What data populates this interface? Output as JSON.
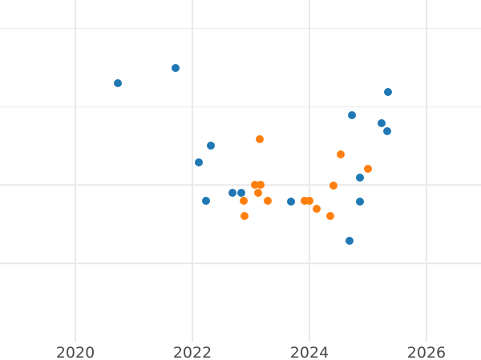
{
  "chart_data": {
    "type": "scatter",
    "title": "",
    "xlabel": "",
    "ylabel": "",
    "grid": true,
    "legend_position": "none",
    "x_range": [
      2018.712,
      2026.932
    ],
    "y_range": [
      0,
      4.365
    ],
    "x_ticks": [
      {
        "value": 2020,
        "label": "2020"
      },
      {
        "value": 2022,
        "label": "2022"
      },
      {
        "value": 2024,
        "label": "2024"
      },
      {
        "value": 2026,
        "label": "2026"
      }
    ],
    "y_gridlines": [
      1,
      2,
      3,
      4
    ],
    "y_tick_labels": [],
    "series": [
      {
        "name": "series-blue",
        "color": "#1f77b4",
        "marker_size": 10,
        "points": [
          [
            2020.72,
            3.3
          ],
          [
            2021.71,
            3.5
          ],
          [
            2022.11,
            2.29
          ],
          [
            2022.23,
            1.8
          ],
          [
            2022.32,
            2.5
          ],
          [
            2022.68,
            1.9
          ],
          [
            2022.83,
            1.9
          ],
          [
            2023.69,
            1.79
          ],
          [
            2024.68,
            1.29
          ],
          [
            2024.73,
            2.89
          ],
          [
            2024.87,
            2.1
          ],
          [
            2024.87,
            1.79
          ],
          [
            2025.23,
            2.79
          ],
          [
            2025.33,
            2.69
          ],
          [
            2025.34,
            3.19
          ]
        ]
      },
      {
        "name": "series-orange",
        "color": "#ff7f0e",
        "marker_size": 10,
        "points": [
          [
            2022.87,
            1.8
          ],
          [
            2022.89,
            1.6
          ],
          [
            2023.07,
            2.0
          ],
          [
            2023.13,
            1.9
          ],
          [
            2023.15,
            2.59
          ],
          [
            2023.17,
            2.0
          ],
          [
            2023.29,
            1.8
          ],
          [
            2023.92,
            1.8
          ],
          [
            2024.0,
            1.8
          ],
          [
            2024.13,
            1.7
          ],
          [
            2024.36,
            1.6
          ],
          [
            2024.41,
            1.99
          ],
          [
            2024.53,
            2.39
          ],
          [
            2025.0,
            2.21
          ]
        ]
      }
    ]
  },
  "colors": {
    "background": "#ffffff",
    "gridline": "#e9e9e9",
    "tick_label": "#4a4a4a",
    "series_blue": "#1f77b4",
    "series_orange": "#ff7f0e"
  }
}
